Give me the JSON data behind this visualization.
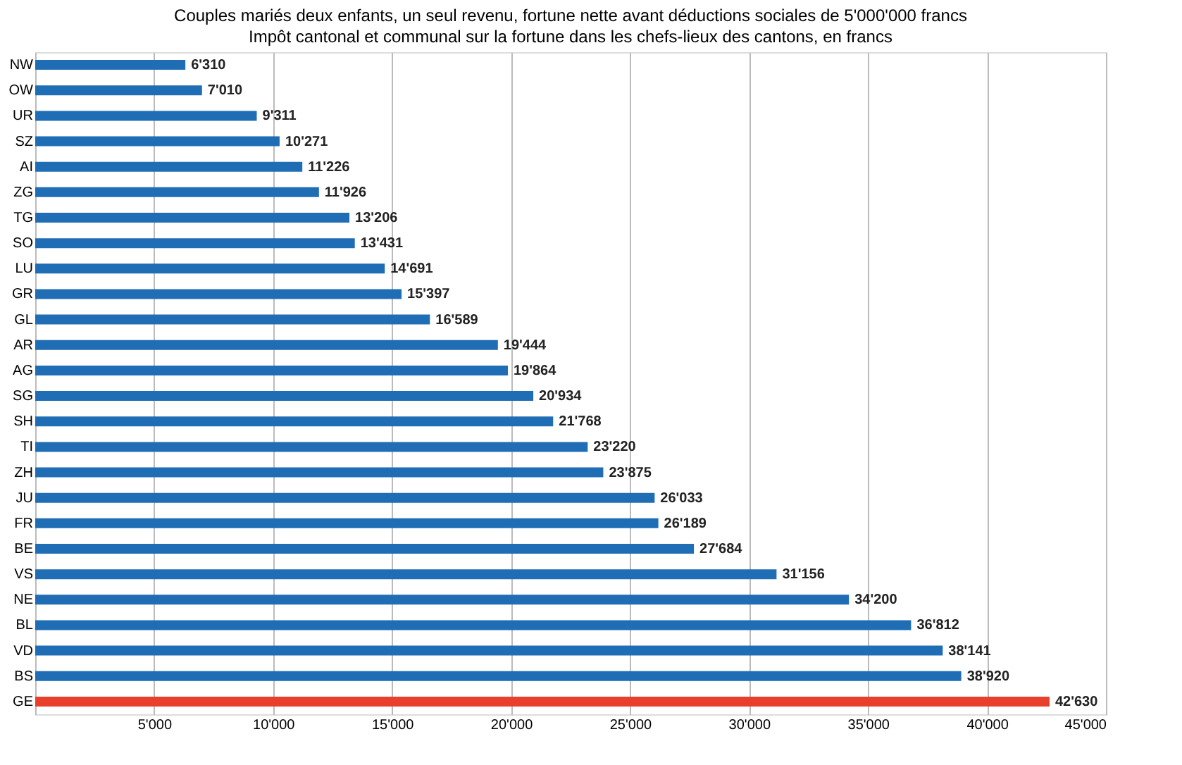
{
  "chart_data": {
    "type": "bar",
    "orientation": "horizontal",
    "title": "Couples mariés deux enfants, un seul revenu, fortune nette avant déductions sociales de  5'000'000 francs",
    "subtitle": "Impôt cantonal et communal sur la fortune dans les chefs-lieux des cantons, en francs",
    "categories": [
      "NW",
      "OW",
      "UR",
      "SZ",
      "AI",
      "ZG",
      "TG",
      "SO",
      "LU",
      "GR",
      "GL",
      "AR",
      "AG",
      "SG",
      "SH",
      "TI",
      "ZH",
      "JU",
      "FR",
      "BE",
      "VS",
      "NE",
      "BL",
      "VD",
      "BS",
      "GE"
    ],
    "values": [
      6310,
      7010,
      9311,
      10271,
      11226,
      11926,
      13206,
      13431,
      14691,
      15397,
      16589,
      19444,
      19864,
      20934,
      21768,
      23220,
      23875,
      26033,
      26189,
      27684,
      31156,
      34200,
      36812,
      38141,
      38920,
      42630
    ],
    "value_labels": [
      "6'310",
      "7'010",
      "9'311",
      "10'271",
      "11'226",
      "11'926",
      "13'206",
      "13'431",
      "14'691",
      "15'397",
      "16'589",
      "19'444",
      "19'864",
      "20'934",
      "21'768",
      "23'220",
      "23'875",
      "26'033",
      "26'189",
      "27'684",
      "31'156",
      "34'200",
      "36'812",
      "38'141",
      "38'920",
      "42'630"
    ],
    "colors": [
      "#1f6db5",
      "#1f6db5",
      "#1f6db5",
      "#1f6db5",
      "#1f6db5",
      "#1f6db5",
      "#1f6db5",
      "#1f6db5",
      "#1f6db5",
      "#1f6db5",
      "#1f6db5",
      "#1f6db5",
      "#1f6db5",
      "#1f6db5",
      "#1f6db5",
      "#1f6db5",
      "#1f6db5",
      "#1f6db5",
      "#1f6db5",
      "#1f6db5",
      "#1f6db5",
      "#1f6db5",
      "#1f6db5",
      "#1f6db5",
      "#1f6db5",
      "#e8402a"
    ],
    "xlim": [
      0,
      45000
    ],
    "xticks": [
      {
        "value": 0,
        "label": null
      },
      {
        "value": 5000,
        "label": "5'000"
      },
      {
        "value": 10000,
        "label": "10'000"
      },
      {
        "value": 15000,
        "label": "15'000"
      },
      {
        "value": 20000,
        "label": "20'000"
      },
      {
        "value": 25000,
        "label": "25'000"
      },
      {
        "value": 30000,
        "label": "30'000"
      },
      {
        "value": 35000,
        "label": "35'000"
      },
      {
        "value": 40000,
        "label": "40'000"
      },
      {
        "value": 45000,
        "label": "45'000"
      }
    ],
    "grid": "x"
  }
}
